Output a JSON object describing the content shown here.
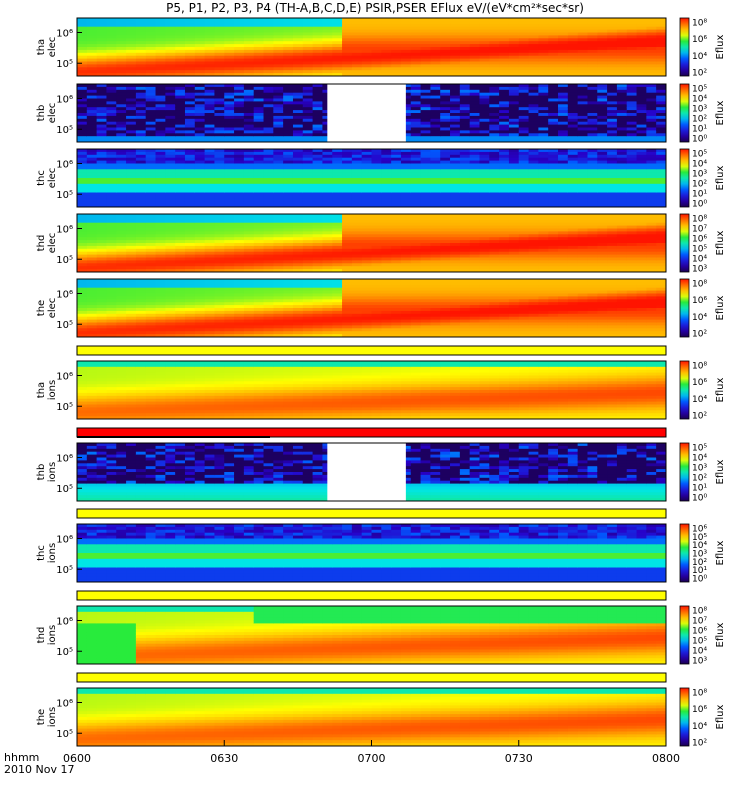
{
  "title": "P5, P1, P2, P3, P4 (TH-A,B,C,D,E) PSIR,PSER EFlux eV/(eV*cm²*sec*sr)",
  "footer": {
    "time_unit": "hhmm",
    "date": "2010 Nov 17"
  },
  "colors": {
    "low": "#1b0050",
    "high": "#ff1a00",
    "separator_yellow": "#ffff00",
    "separator_red": "#ff0000"
  },
  "chart_data": [
    {
      "type": "heatmap",
      "probe": "tha",
      "species": "elec",
      "ylabel": [
        "tha",
        "elec"
      ],
      "ytick_labels": [
        "10⁶",
        "10⁵"
      ],
      "colorbar_ticks": [
        "10⁸",
        "10⁶",
        "10⁴",
        "10²"
      ],
      "colorbar_label": "Eflux",
      "pattern": "ramp_elec",
      "gap": false
    },
    {
      "type": "heatmap",
      "probe": "thb",
      "species": "elec",
      "ylabel": [
        "thb",
        "elec"
      ],
      "ytick_labels": [
        "10⁶",
        "10⁵"
      ],
      "colorbar_ticks": [
        "10⁵",
        "10⁴",
        "10³",
        "10²",
        "10¹",
        "10⁰"
      ],
      "colorbar_label": "Eflux",
      "pattern": "noise",
      "gap": true,
      "gap_start": "0651",
      "gap_end": "0707"
    },
    {
      "type": "heatmap",
      "probe": "thc",
      "species": "elec",
      "ylabel": [
        "thc",
        "elec"
      ],
      "ytick_labels": [
        "10⁶",
        "10⁵"
      ],
      "colorbar_ticks": [
        "10⁵",
        "10⁴",
        "10³",
        "10²",
        "10¹",
        "10⁰"
      ],
      "colorbar_label": "Eflux",
      "pattern": "bands",
      "gap": false
    },
    {
      "type": "heatmap",
      "probe": "thd",
      "species": "elec",
      "ylabel": [
        "thd",
        "elec"
      ],
      "ytick_labels": [
        "10⁶",
        "10⁵"
      ],
      "colorbar_ticks": [
        "10⁸",
        "10⁷",
        "10⁶",
        "10⁵",
        "10⁴",
        "10³"
      ],
      "colorbar_label": "Eflux",
      "pattern": "ramp_elec",
      "gap": false
    },
    {
      "type": "heatmap",
      "probe": "the",
      "species": "elec",
      "ylabel": [
        "the",
        "elec"
      ],
      "ytick_labels": [
        "10⁶",
        "10⁵"
      ],
      "colorbar_ticks": [
        "10⁸",
        "10⁶",
        "10⁴",
        "10²"
      ],
      "colorbar_label": "Eflux",
      "pattern": "ramp_elec",
      "gap": false
    },
    {
      "type": "heatmap",
      "probe": "tha",
      "species": "ions",
      "ylabel": [
        "tha",
        "ions"
      ],
      "ytick_labels": [
        "10⁶",
        "10⁵"
      ],
      "colorbar_ticks": [
        "10⁸",
        "10⁶",
        "10⁴",
        "10²"
      ],
      "colorbar_label": "Eflux",
      "pattern": "ramp_ions",
      "gap": false
    },
    {
      "type": "heatmap",
      "probe": "thb",
      "species": "ions",
      "ylabel": [
        "thb",
        "ions"
      ],
      "ytick_labels": [
        "10⁶",
        "10⁵"
      ],
      "colorbar_ticks": [
        "10⁵",
        "10⁴",
        "10³",
        "10²",
        "10¹",
        "10⁰"
      ],
      "colorbar_label": "Eflux",
      "pattern": "noise_ions",
      "gap": true,
      "gap_start": "0651",
      "gap_end": "0707"
    },
    {
      "type": "heatmap",
      "probe": "thc",
      "species": "ions",
      "ylabel": [
        "thc",
        "ions"
      ],
      "ytick_labels": [
        "10⁶",
        "10⁵"
      ],
      "colorbar_ticks": [
        "10⁶",
        "10⁵",
        "10⁴",
        "10³",
        "10²",
        "10¹",
        "10⁰"
      ],
      "colorbar_label": "Eflux",
      "pattern": "bands",
      "gap": false
    },
    {
      "type": "heatmap",
      "probe": "thd",
      "species": "ions",
      "ylabel": [
        "thd",
        "ions"
      ],
      "ytick_labels": [
        "10⁶",
        "10⁵"
      ],
      "colorbar_ticks": [
        "10⁸",
        "10⁷",
        "10⁶",
        "10⁵",
        "10⁴",
        "10³"
      ],
      "colorbar_label": "Eflux",
      "pattern": "ramp_ions_green",
      "gap": false
    },
    {
      "type": "heatmap",
      "probe": "the",
      "species": "ions",
      "ylabel": [
        "the",
        "ions"
      ],
      "ytick_labels": [
        "10⁶",
        "10⁵"
      ],
      "colorbar_ticks": [
        "10⁸",
        "10⁶",
        "10⁴",
        "10²"
      ],
      "colorbar_label": "Eflux",
      "pattern": "ramp_ions",
      "gap": false
    }
  ],
  "x_axis": {
    "tick_labels": [
      "0600",
      "0630",
      "0700",
      "0730",
      "0800"
    ]
  }
}
